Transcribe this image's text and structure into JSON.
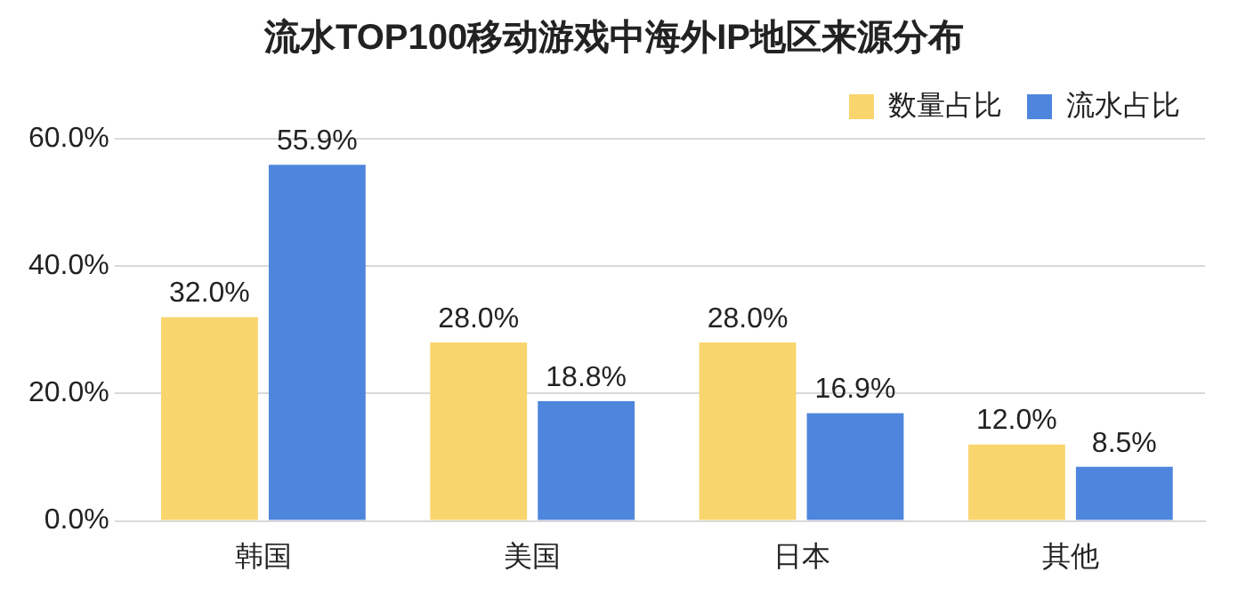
{
  "chart_data": {
    "type": "bar",
    "title": "流水TOP100移动游戏中海外IP地区来源分布",
    "categories": [
      "韩国",
      "美国",
      "日本",
      "其他"
    ],
    "series": [
      {
        "name": "数量占比",
        "color": "#f9d56e",
        "values": [
          32.0,
          28.0,
          28.0,
          12.0
        ],
        "value_labels": [
          "32.0%",
          "28.0%",
          "28.0%",
          "12.0%"
        ]
      },
      {
        "name": "流水占比",
        "color": "#4e86dd",
        "values": [
          55.9,
          18.8,
          16.9,
          8.5
        ],
        "value_labels": [
          "55.9%",
          "18.8%",
          "16.9%",
          "8.5%"
        ]
      }
    ],
    "ylim": [
      0,
      60
    ],
    "yticks": [
      {
        "value": 0,
        "label": "0.0%"
      },
      {
        "value": 20,
        "label": "20.0%"
      },
      {
        "value": 40,
        "label": "40.0%"
      },
      {
        "value": 60,
        "label": "60.0%"
      }
    ],
    "grid": "y",
    "legend": "top right"
  }
}
